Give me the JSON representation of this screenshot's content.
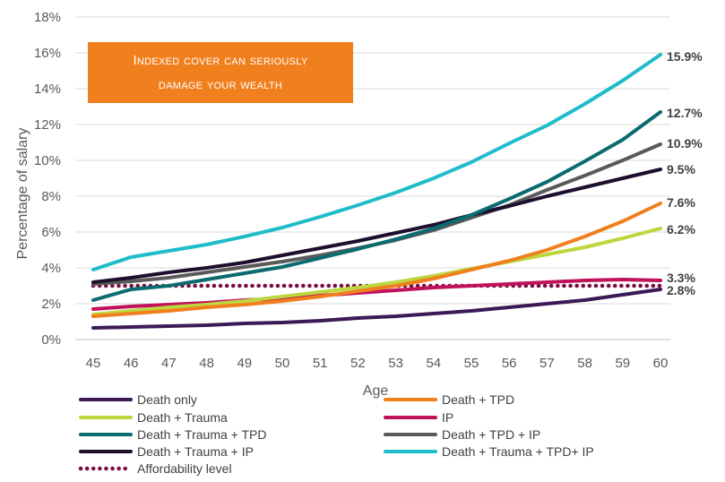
{
  "banner": {
    "line1": "Indexed cover can seriously",
    "line2": "damage your wealth"
  },
  "chart_data": {
    "type": "line",
    "title": "",
    "xlabel": "Age",
    "ylabel": "Percentage of salary",
    "x": [
      45,
      46,
      47,
      48,
      49,
      50,
      51,
      52,
      53,
      54,
      55,
      56,
      57,
      58,
      59,
      60
    ],
    "ylim": [
      0,
      18
    ],
    "yticks": [
      0,
      2,
      4,
      6,
      8,
      10,
      12,
      14,
      16,
      18
    ],
    "ytick_labels": [
      "0%",
      "2%",
      "4%",
      "6%",
      "8%",
      "10%",
      "12%",
      "14%",
      "16%",
      "18%"
    ],
    "grid": true,
    "legend_position": "bottom",
    "series": [
      {
        "name": "Death only",
        "color": "#3b1a57",
        "dashed": false,
        "end_label": "2.8%",
        "values": [
          0.65,
          0.7,
          0.75,
          0.8,
          0.9,
          0.95,
          1.05,
          1.2,
          1.3,
          1.45,
          1.6,
          1.8,
          2.0,
          2.2,
          2.5,
          2.8
        ]
      },
      {
        "name": "Death + TPD",
        "color": "#f07f1e",
        "dashed": false,
        "end_label": "7.6%",
        "values": [
          1.3,
          1.45,
          1.6,
          1.8,
          1.95,
          2.15,
          2.4,
          2.7,
          3.0,
          3.4,
          3.9,
          4.4,
          5.0,
          5.75,
          6.6,
          7.6
        ]
      },
      {
        "name": "Death + Trauma",
        "color": "#bdd73e",
        "dashed": false,
        "end_label": "6.2%",
        "values": [
          1.4,
          1.6,
          1.8,
          1.95,
          2.15,
          2.4,
          2.65,
          2.9,
          3.2,
          3.55,
          3.95,
          4.35,
          4.75,
          5.15,
          5.65,
          6.2
        ]
      },
      {
        "name": "IP",
        "color": "#c0125a",
        "dashed": false,
        "end_label": "3.3%",
        "values": [
          1.7,
          1.85,
          1.95,
          2.05,
          2.2,
          2.3,
          2.45,
          2.6,
          2.75,
          2.9,
          3.0,
          3.1,
          3.2,
          3.3,
          3.35,
          3.3
        ]
      },
      {
        "name": "Death + Trauma + TPD",
        "color": "#0b6b70",
        "dashed": false,
        "end_label": "12.7%",
        "values": [
          2.2,
          2.8,
          3.0,
          3.35,
          3.7,
          4.05,
          4.55,
          5.05,
          5.6,
          6.2,
          6.95,
          7.85,
          8.8,
          9.95,
          11.15,
          12.7
        ]
      },
      {
        "name": "Death + TPD + IP",
        "color": "#5a5a5a",
        "dashed": false,
        "end_label": "10.9%",
        "values": [
          3.1,
          3.25,
          3.45,
          3.75,
          4.05,
          4.35,
          4.7,
          5.1,
          5.55,
          6.1,
          6.8,
          7.5,
          8.35,
          9.15,
          10.0,
          10.9
        ]
      },
      {
        "name": "Death + Trauma + IP",
        "color": "#1e0f2e",
        "dashed": false,
        "end_label": "9.5%",
        "values": [
          3.2,
          3.45,
          3.75,
          4.0,
          4.3,
          4.7,
          5.1,
          5.5,
          5.95,
          6.4,
          6.95,
          7.45,
          8.0,
          8.5,
          9.0,
          9.5
        ]
      },
      {
        "name": "Death + Trauma + TPD+ IP",
        "color": "#1fbcc9",
        "dashed": false,
        "end_label": "15.9%",
        "values": [
          3.9,
          4.6,
          4.95,
          5.3,
          5.75,
          6.25,
          6.85,
          7.5,
          8.2,
          9.0,
          9.9,
          10.95,
          11.95,
          13.15,
          14.45,
          15.9
        ]
      },
      {
        "name": "Affordability level",
        "color": "#7b0d3e",
        "dashed": true,
        "end_label": "",
        "values": [
          3.0,
          3.0,
          3.0,
          3.0,
          3.0,
          3.0,
          3.0,
          3.0,
          3.0,
          3.0,
          3.0,
          3.0,
          3.0,
          3.0,
          3.0,
          3.0
        ]
      }
    ]
  }
}
